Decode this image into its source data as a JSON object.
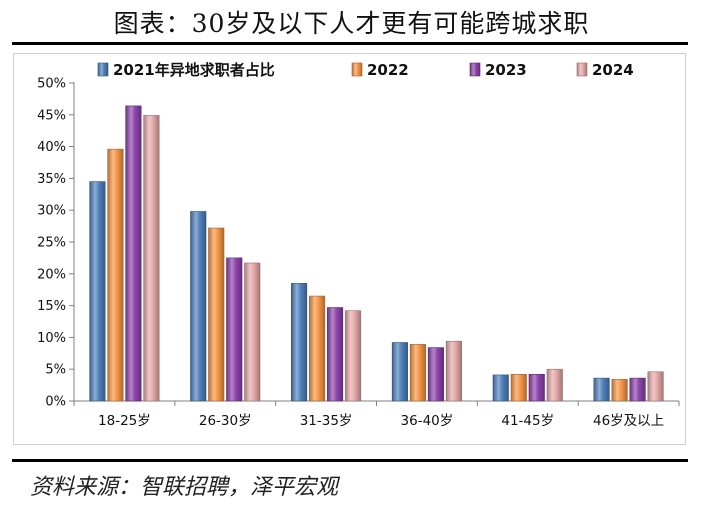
{
  "title": "图表：30岁及以下人才更有可能跨城求职",
  "source": "资料来源：智联招聘，泽平宏观",
  "chart_data": {
    "type": "bar",
    "categories": [
      "18-25岁",
      "26-30岁",
      "31-35岁",
      "36-40岁",
      "41-45岁",
      "46岁及以上"
    ],
    "series": [
      {
        "name": "2021年异地求职者占比",
        "values": [
          34.5,
          29.8,
          18.5,
          9.2,
          4.1,
          3.6
        ],
        "color": "#4f81bd"
      },
      {
        "name": "2022",
        "values": [
          39.6,
          27.2,
          16.5,
          8.9,
          4.2,
          3.4
        ],
        "color": "#f79646"
      },
      {
        "name": "2023",
        "values": [
          46.4,
          22.5,
          14.7,
          8.4,
          4.2,
          3.6
        ],
        "color": "#8e44ad"
      },
      {
        "name": "2024",
        "values": [
          44.9,
          21.7,
          14.2,
          9.4,
          5.0,
          4.6
        ],
        "color": "#e6a9a9"
      }
    ],
    "ylim": [
      0,
      50
    ],
    "yticks": [
      0,
      5,
      10,
      15,
      20,
      25,
      30,
      35,
      40,
      45,
      50
    ],
    "ytick_labels": [
      "0%",
      "5%",
      "10%",
      "15%",
      "20%",
      "25%",
      "30%",
      "35%",
      "40%",
      "45%",
      "50%"
    ],
    "legend_position": "top",
    "grid": false
  }
}
